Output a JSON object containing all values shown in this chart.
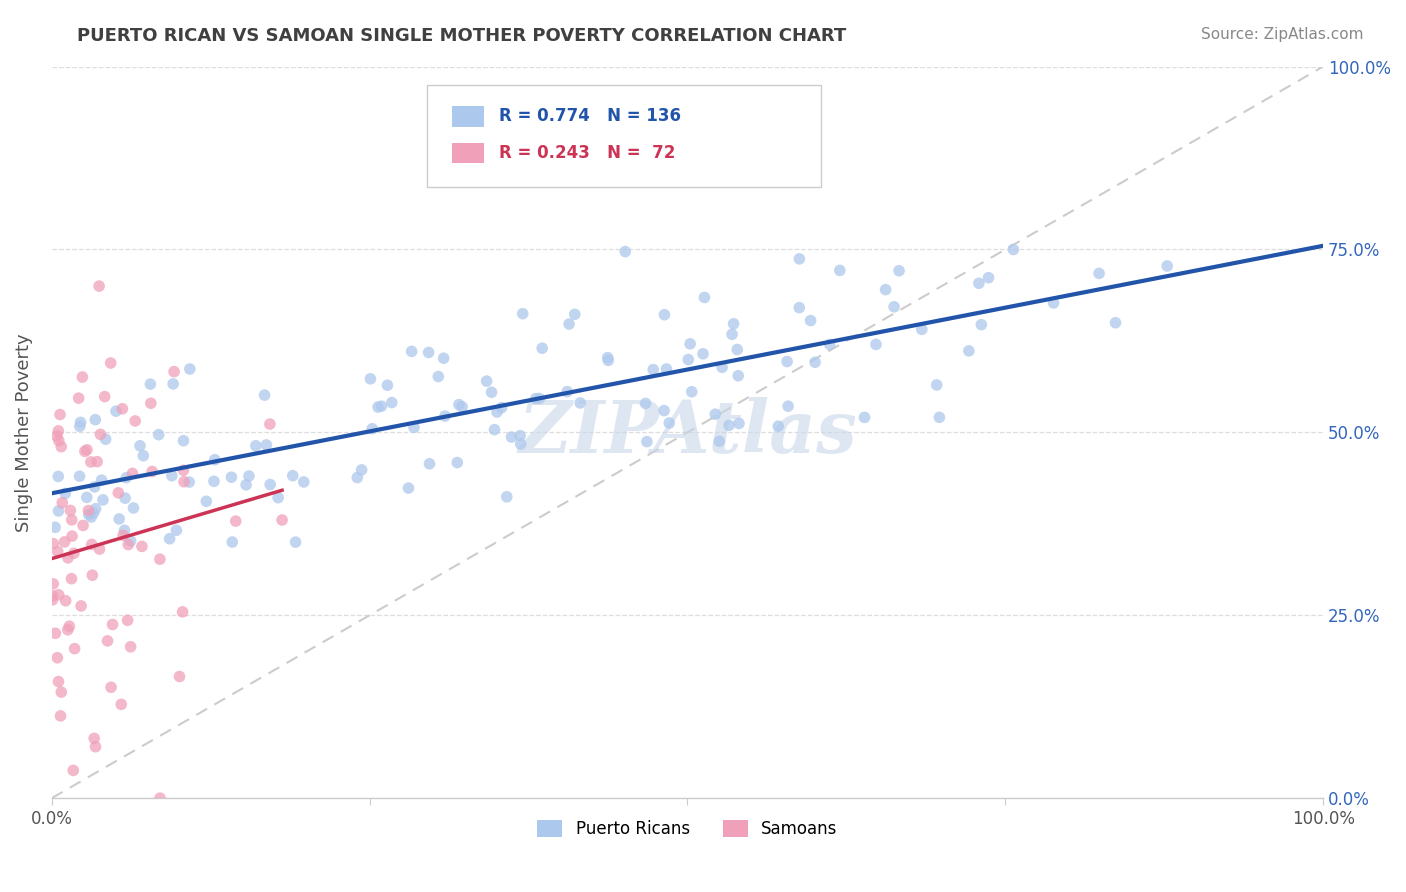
{
  "title": "PUERTO RICAN VS SAMOAN SINGLE MOTHER POVERTY CORRELATION CHART",
  "source": "Source: ZipAtlas.com",
  "ylabel": "Single Mother Poverty",
  "xticklabels": [
    "0.0%",
    "",
    "",
    "",
    "100.0%"
  ],
  "yticklabels_right": [
    "0.0%",
    "25.0%",
    "50.0%",
    "75.0%",
    "100.0%"
  ],
  "xlim": [
    0,
    1
  ],
  "ylim": [
    0,
    1
  ],
  "pr_color": "#adc8ed",
  "sa_color": "#f0a0b8",
  "pr_line_color": "#2255aa",
  "sa_line_color": "#cc3355",
  "ref_line_color": "#cccccc",
  "watermark_color": "#c8d8e8",
  "title_color": "#404040",
  "source_color": "#888888",
  "legend_pr_text_color": "#2255aa",
  "legend_sa_text_color": "#cc3355",
  "right_tick_color": "#3366bb",
  "pr_R": 0.774,
  "pr_N": 136,
  "sa_R": 0.243,
  "sa_N": 72,
  "seed": 42
}
